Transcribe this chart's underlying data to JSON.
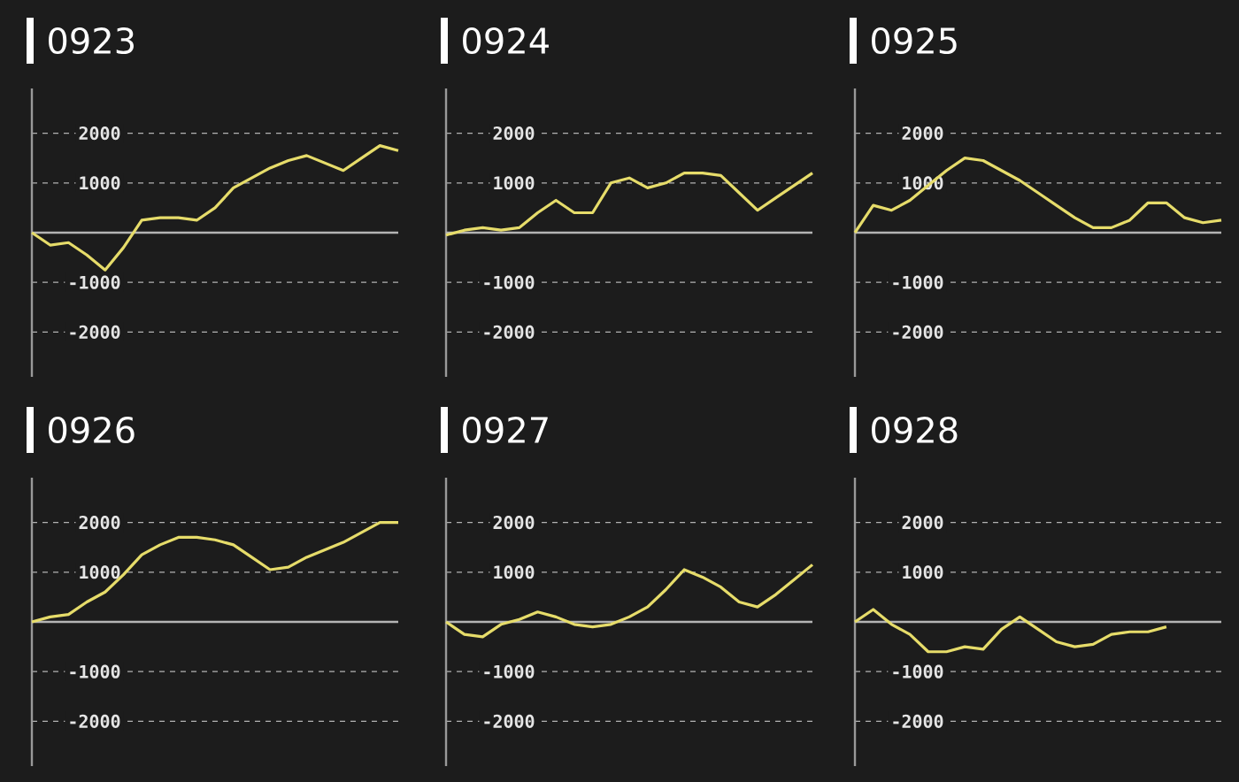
{
  "chart_data": [
    {
      "type": "line",
      "title": "0923",
      "categories": [
        null,
        null,
        null,
        null,
        null,
        null,
        null,
        null,
        null,
        null,
        null,
        null,
        null,
        null,
        null,
        null,
        null,
        null,
        null,
        null,
        null
      ],
      "color": "#e6dc6a",
      "ylim": [
        -2900,
        2900
      ],
      "yticks": [
        -2000,
        -1000,
        1000,
        2000
      ],
      "grid": "y",
      "tick_labels": "y",
      "ref_lines": [
        {
          "axis": "y",
          "value": 0,
          "color": "#b4b4b4"
        }
      ],
      "values": [
        0,
        -250,
        -200,
        -450,
        -750,
        -300,
        250,
        300,
        300,
        250,
        500,
        900,
        1100,
        1300,
        1450,
        1550,
        1400,
        1250,
        1500,
        1750,
        1650
      ]
    },
    {
      "type": "line",
      "title": "0924",
      "categories": [
        null,
        null,
        null,
        null,
        null,
        null,
        null,
        null,
        null,
        null,
        null,
        null,
        null,
        null,
        null,
        null,
        null,
        null,
        null,
        null,
        null
      ],
      "color": "#e6dc6a",
      "ylim": [
        -2900,
        2900
      ],
      "yticks": [
        -2000,
        -1000,
        1000,
        2000
      ],
      "grid": "y",
      "tick_labels": "y",
      "ref_lines": [
        {
          "axis": "y",
          "value": 0,
          "color": "#b4b4b4"
        }
      ],
      "values": [
        -50,
        50,
        100,
        50,
        100,
        400,
        650,
        400,
        400,
        1000,
        1100,
        900,
        1000,
        1200,
        1200,
        1150,
        800,
        450,
        700,
        950,
        1200
      ]
    },
    {
      "type": "line",
      "title": "0925",
      "categories": [
        null,
        null,
        null,
        null,
        null,
        null,
        null,
        null,
        null,
        null,
        null,
        null,
        null,
        null,
        null,
        null,
        null,
        null,
        null,
        null,
        null
      ],
      "color": "#e6dc6a",
      "ylim": [
        -2900,
        2900
      ],
      "yticks": [
        -2000,
        -1000,
        1000,
        2000
      ],
      "grid": "y",
      "tick_labels": "y",
      "ref_lines": [
        {
          "axis": "y",
          "value": 0,
          "color": "#b4b4b4"
        }
      ],
      "values": [
        0,
        550,
        450,
        650,
        950,
        1250,
        1500,
        1450,
        1250,
        1050,
        800,
        550,
        300,
        100,
        100,
        250,
        600,
        600,
        300,
        200,
        250
      ]
    },
    {
      "type": "line",
      "title": "0926",
      "categories": [
        null,
        null,
        null,
        null,
        null,
        null,
        null,
        null,
        null,
        null,
        null,
        null,
        null,
        null,
        null,
        null,
        null,
        null,
        null,
        null,
        null
      ],
      "color": "#e6dc6a",
      "ylim": [
        -2900,
        2900
      ],
      "yticks": [
        -2000,
        -1000,
        1000,
        2000
      ],
      "grid": "y",
      "tick_labels": "y",
      "ref_lines": [
        {
          "axis": "y",
          "value": 0,
          "color": "#b4b4b4"
        }
      ],
      "values": [
        0,
        100,
        150,
        400,
        600,
        950,
        1350,
        1550,
        1700,
        1700,
        1650,
        1550,
        1300,
        1050,
        1100,
        1300,
        1450,
        1600,
        1800,
        2000,
        2000
      ]
    },
    {
      "type": "line",
      "title": "0927",
      "categories": [
        null,
        null,
        null,
        null,
        null,
        null,
        null,
        null,
        null,
        null,
        null,
        null,
        null,
        null,
        null,
        null,
        null,
        null,
        null,
        null,
        null
      ],
      "color": "#e6dc6a",
      "ylim": [
        -2900,
        2900
      ],
      "yticks": [
        -2000,
        -1000,
        1000,
        2000
      ],
      "grid": "y",
      "tick_labels": "y",
      "ref_lines": [
        {
          "axis": "y",
          "value": 0,
          "color": "#b4b4b4"
        }
      ],
      "values": [
        0,
        -250,
        -300,
        -50,
        50,
        200,
        100,
        -50,
        -100,
        -50,
        100,
        300,
        650,
        1050,
        900,
        700,
        400,
        300,
        550,
        850,
        1150
      ]
    },
    {
      "type": "line",
      "title": "0928",
      "categories": [
        null,
        null,
        null,
        null,
        null,
        null,
        null,
        null,
        null,
        null,
        null,
        null,
        null,
        null,
        null,
        null,
        null,
        null,
        null,
        null,
        null
      ],
      "color": "#e6dc6a",
      "ylim": [
        -2900,
        2900
      ],
      "yticks": [
        -2000,
        -1000,
        1000,
        2000
      ],
      "grid": "y",
      "tick_labels": "y",
      "ref_lines": [
        {
          "axis": "y",
          "value": 0,
          "color": "#b4b4b4"
        }
      ],
      "values": [
        0,
        250,
        -50,
        -250,
        -600,
        -600,
        -500,
        -550,
        -150,
        100,
        -150,
        -400,
        -500,
        -450,
        -250,
        -200,
        -200,
        -100,
        null,
        null,
        null
      ]
    }
  ]
}
